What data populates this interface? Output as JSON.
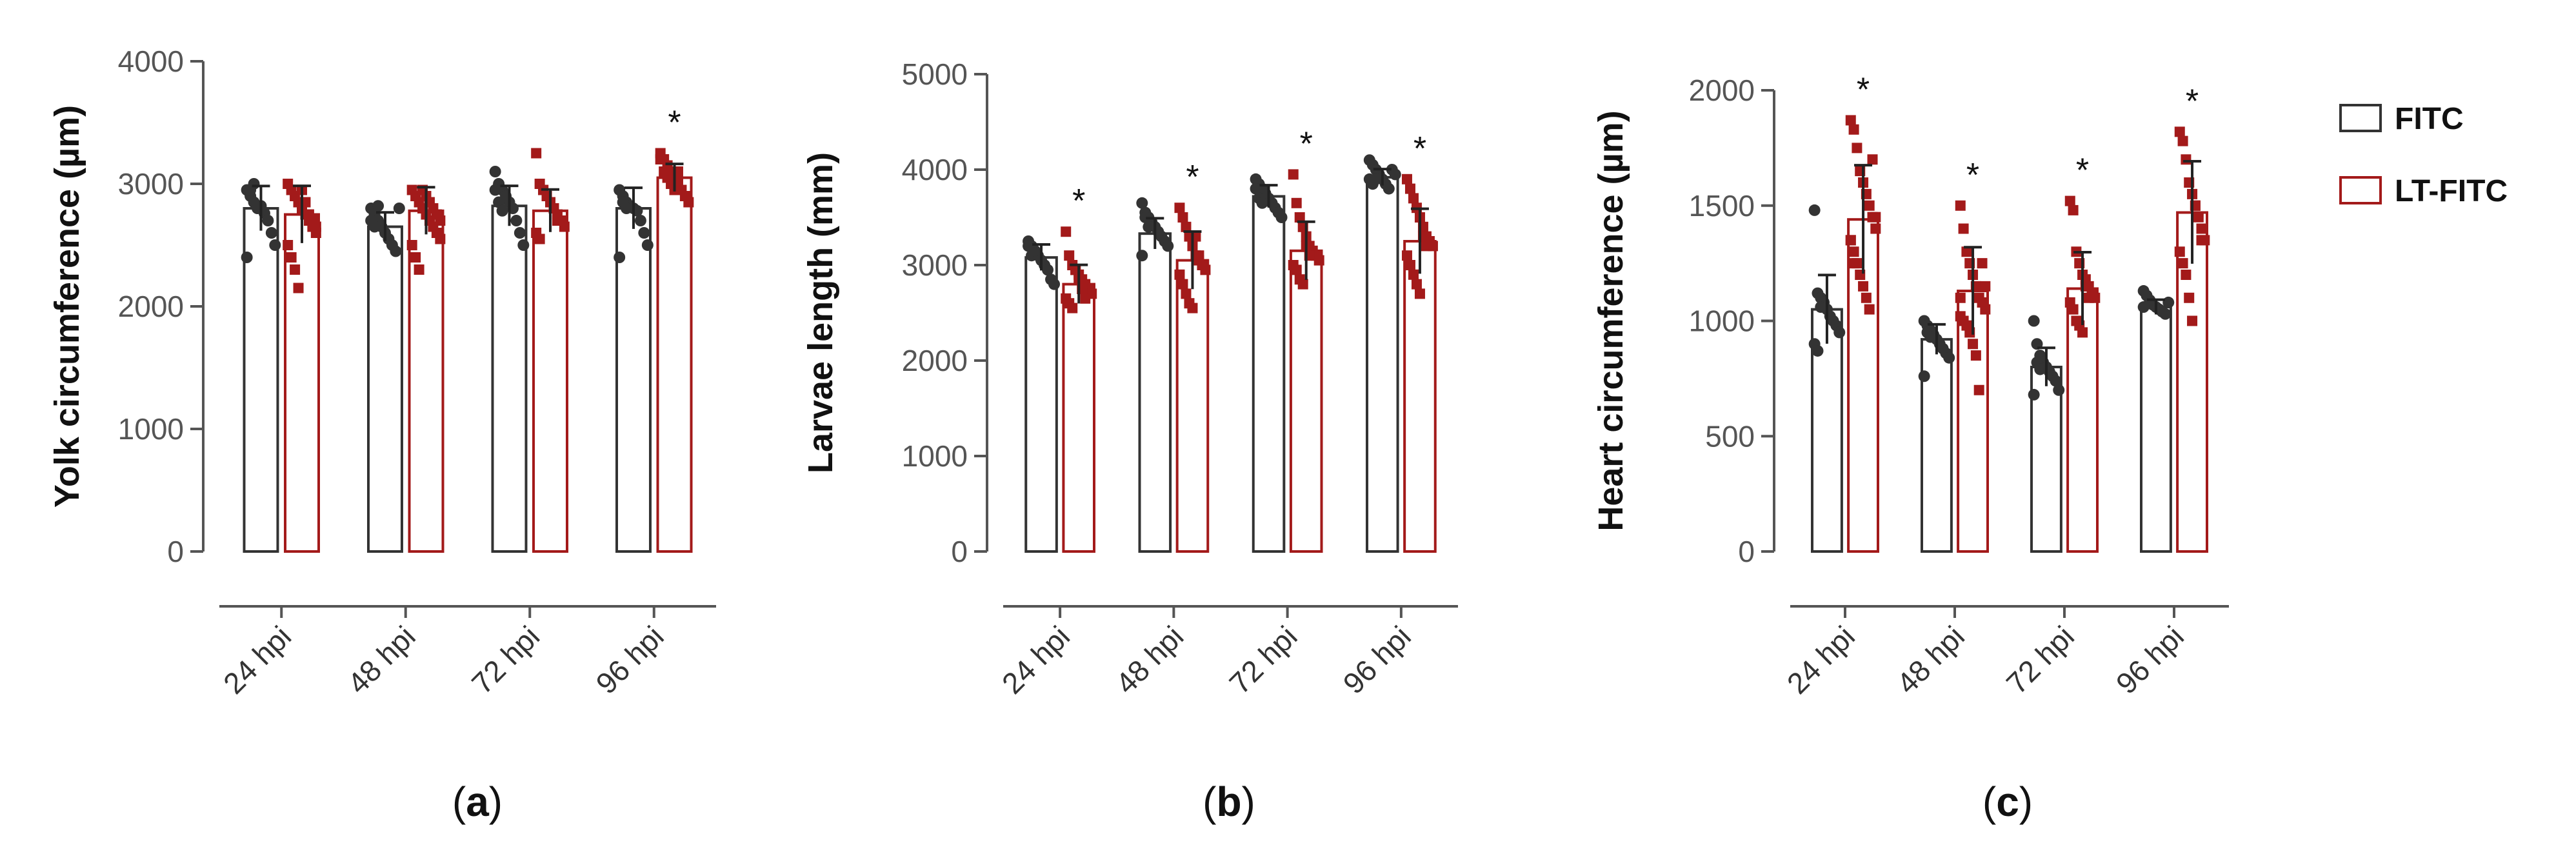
{
  "legend": [
    {
      "label": "FITC",
      "color": "#333333"
    },
    {
      "label": "LT-FITC",
      "color": "#a31a1a"
    }
  ],
  "chart_data": [
    {
      "type": "bar",
      "panel": "a",
      "panel_label_open": "(",
      "panel_label_close": ")",
      "title": "",
      "xlabel": "",
      "ylabel": "Yolk circumference (µm)",
      "ylim": [
        0,
        4000
      ],
      "yticks": [
        "0",
        "1000",
        "2000",
        "3000",
        "4000"
      ],
      "categories": [
        "24 hpi",
        "48 hpi",
        "72 hpi",
        "96 hpi"
      ],
      "series": [
        {
          "name": "FITC",
          "values": [
            2800,
            2650,
            2820,
            2800
          ],
          "points": [
            [
              2950,
              2900,
              2850,
              2800,
              2820,
              2760,
              2700,
              2600,
              2500,
              2400,
              2950,
              3000
            ],
            [
              2800,
              2750,
              2700,
              2650,
              2600,
              2550,
              2500,
              2450,
              2800,
              2700,
              2650,
              2820
            ],
            [
              3100,
              3000,
              2950,
              2900,
              2850,
              2800,
              2700,
              2600,
              2500,
              2950,
              2850,
              2780
            ],
            [
              2950,
              2900,
              2850,
              2820,
              2800,
              2780,
              2700,
              2600,
              2500,
              2400,
              2850,
              2800
            ]
          ]
        },
        {
          "name": "LT-FITC",
          "values": [
            2750,
            2780,
            2780,
            3050
          ],
          "points": [
            [
              3000,
              2950,
              2900,
              2850,
              2800,
              2750,
              2700,
              2650,
              2600,
              2500,
              2400,
              2300,
              2150,
              2950,
              2850,
              2750,
              2700,
              2650
            ],
            [
              2950,
              2900,
              2850,
              2800,
              2750,
              2700,
              2650,
              2600,
              2550,
              2500,
              2400,
              2300,
              2950,
              2900,
              2850,
              2800,
              2750,
              2700
            ],
            [
              3250,
              3000,
              2950,
              2900,
              2850,
              2800,
              2750,
              2700,
              2650,
              2600,
              2550,
              2950,
              2900,
              2850,
              2800,
              2700
            ],
            [
              3250,
              3200,
              3150,
              3100,
              3050,
              3000,
              2950,
              2900,
              2850,
              3200,
              3100,
              3050,
              3000,
              2950,
              3100
            ]
          ]
        }
      ],
      "significance": [
        "",
        "",
        "",
        "*"
      ]
    },
    {
      "type": "bar",
      "panel": "b",
      "panel_label_open": "(",
      "panel_label_close": ")",
      "title": "",
      "xlabel": "",
      "ylabel": "Larvae length (mm)",
      "ylim": [
        0,
        5000
      ],
      "yticks": [
        "0",
        "1000",
        "2000",
        "3000",
        "4000",
        "5000"
      ],
      "categories": [
        "24 hpi",
        "48 hpi",
        "72 hpi",
        "96 hpi"
      ],
      "series": [
        {
          "name": "FITC",
          "values": [
            3080,
            3330,
            3720,
            3920
          ],
          "points": [
            [
              3250,
              3200,
              3150,
              3100,
              3050,
              3000,
              2950,
              2850,
              2800,
              3200,
              3100,
              3150
            ],
            [
              3650,
              3550,
              3500,
              3450,
              3400,
              3350,
              3300,
              3250,
              3200,
              3100,
              3500,
              3400
            ],
            [
              3900,
              3850,
              3800,
              3750,
              3700,
              3650,
              3600,
              3550,
              3500,
              3800,
              3700,
              3650
            ],
            [
              4100,
              4050,
              4000,
              3950,
              3900,
              3850,
              3800,
              4000,
              3950,
              3900,
              3850,
              3900
            ]
          ]
        },
        {
          "name": "LT-FITC",
          "values": [
            2800,
            3050,
            3150,
            3250
          ],
          "points": [
            [
              3350,
              3100,
              3000,
              2950,
              2900,
              2850,
              2800,
              2750,
              2700,
              2650,
              2600,
              2550,
              2950,
              2850,
              2750,
              2650
            ],
            [
              3600,
              3500,
              3400,
              3300,
              3200,
              3100,
              3050,
              3000,
              2950,
              2900,
              2800,
              2700,
              2600,
              2550,
              3300,
              3100
            ],
            [
              3950,
              3650,
              3500,
              3400,
              3300,
              3200,
              3150,
              3100,
              3050,
              3000,
              2950,
              2850,
              2800,
              3200,
              3100
            ],
            [
              3900,
              3800,
              3700,
              3600,
              3500,
              3400,
              3300,
              3250,
              3200,
              3100,
              3000,
              2900,
              2800,
              2700,
              3300,
              3200
            ]
          ]
        }
      ],
      "significance": [
        "*",
        "*",
        "*",
        "*"
      ]
    },
    {
      "type": "bar",
      "panel": "c",
      "panel_label_open": "(",
      "panel_label_close": ")",
      "title": "",
      "xlabel": "",
      "ylabel": "Heart circumference (µm)",
      "ylim": [
        0,
        2000
      ],
      "yticks": [
        "0",
        "500",
        "1000",
        "1500",
        "2000"
      ],
      "categories": [
        "24 hpi",
        "48 hpi",
        "72 hpi",
        "96 hpi"
      ],
      "series": [
        {
          "name": "FITC",
          "values": [
            1050,
            920,
            800,
            1060
          ],
          "points": [
            [
              1480,
              1120,
              1100,
              1080,
              1050,
              1020,
              1000,
              980,
              950,
              900,
              870,
              1060
            ],
            [
              1000,
              980,
              960,
              940,
              920,
              900,
              880,
              860,
              840,
              760,
              950,
              930
            ],
            [
              1000,
              900,
              850,
              820,
              800,
              780,
              760,
              740,
              700,
              680,
              820,
              790
            ],
            [
              1130,
              1110,
              1090,
              1070,
              1060,
              1050,
              1040,
              1030,
              1080,
              1060
            ]
          ]
        },
        {
          "name": "LT-FITC",
          "values": [
            1440,
            1130,
            1140,
            1470
          ],
          "points": [
            [
              1870,
              1830,
              1750,
              1650,
              1600,
              1550,
              1500,
              1450,
              1400,
              1350,
              1300,
              1250,
              1200,
              1150,
              1100,
              1050,
              1700,
              1450,
              1350,
              1250
            ],
            [
              1500,
              1400,
              1300,
              1250,
              1200,
              1150,
              1100,
              1080,
              1050,
              1020,
              1000,
              980,
              950,
              900,
              850,
              700,
              1250,
              1150,
              1100
            ],
            [
              1520,
              1480,
              1300,
              1250,
              1200,
              1180,
              1150,
              1120,
              1100,
              1080,
              1050,
              1000,
              980,
              950,
              1150,
              1100
            ],
            [
              1820,
              1780,
              1700,
              1600,
              1550,
              1500,
              1450,
              1400,
              1350,
              1300,
              1250,
              1200,
              1100,
              1000,
              1500,
              1450,
              1350
            ]
          ]
        }
      ],
      "significance": [
        "*",
        "*",
        "*",
        "*"
      ]
    }
  ]
}
